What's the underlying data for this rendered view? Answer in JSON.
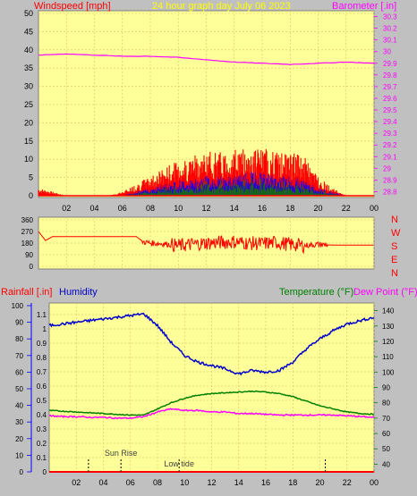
{
  "title": "24 hour graph day   July 06 2023",
  "colors": {
    "background": "#c0c0c0",
    "plot": "#ffff99",
    "grid": "#d8c060",
    "windspeed": "#ff0000",
    "wind_gust_low": "#0000ff",
    "wind_green": "#008000",
    "barometer": "#ff00ff",
    "direction": "#ff0000",
    "rainfall": "#ff0000",
    "humidity": "#0000cc",
    "temperature": "#008000",
    "dewpoint": "#ff00ff",
    "title": "#ffff00"
  },
  "chart_data": [
    {
      "type": "line",
      "name": "wind_barometer",
      "left_axis_label": "Windspeed [mph]",
      "right_axis_label": "Barometer [.in]",
      "x_ticks": [
        "02",
        "04",
        "06",
        "08",
        "10",
        "12",
        "14",
        "16",
        "18",
        "20",
        "22",
        "00"
      ],
      "y_ticks": [
        "0",
        "5",
        "10",
        "15",
        "20",
        "25",
        "30",
        "35",
        "40",
        "45",
        "50"
      ],
      "y2_ticks": [
        "28.8",
        "28.9",
        "29",
        "29.1",
        "29.2",
        "29.3",
        "29.4",
        "29.5",
        "29.6",
        "29.7",
        "29.8",
        "29.9",
        "30",
        "30.1",
        "30.2",
        "30.3"
      ],
      "ylim": [
        0,
        50
      ],
      "y2lim": [
        28.75,
        30.35
      ],
      "barometer": {
        "x": [
          0,
          2,
          4,
          6,
          8,
          10,
          12,
          14,
          16,
          18,
          20,
          22,
          24
        ],
        "y": [
          29.97,
          29.98,
          29.97,
          29.96,
          29.96,
          29.95,
          29.93,
          29.91,
          29.9,
          29.89,
          29.9,
          29.91,
          29.9
        ]
      },
      "windspeed_envelope": {
        "x": [
          0,
          1,
          2,
          3,
          4,
          5,
          6,
          7,
          8,
          9,
          10,
          11,
          12,
          13,
          14,
          15,
          16,
          17,
          18,
          19,
          20,
          21,
          22,
          23,
          24
        ],
        "gust": [
          2,
          1,
          0,
          0,
          0,
          0,
          1,
          3,
          5,
          7,
          9,
          10,
          11,
          11,
          12,
          12,
          12,
          11,
          11,
          10,
          5,
          2,
          0,
          0,
          0
        ],
        "avg": [
          0,
          0,
          0,
          0,
          0,
          0,
          0,
          1,
          2,
          3,
          4,
          4,
          5,
          5,
          5,
          6,
          6,
          5,
          5,
          4,
          2,
          1,
          0,
          0,
          0
        ]
      }
    },
    {
      "type": "line",
      "name": "wind_direction",
      "y_ticks": [
        "360",
        "270",
        "180",
        "90",
        "0"
      ],
      "right_labels": [
        "N",
        "W",
        "S",
        "E",
        "N"
      ],
      "ylim": [
        0,
        360
      ],
      "x": [
        0,
        0.5,
        1,
        2,
        4,
        6,
        7,
        7.5,
        8,
        9,
        10,
        11,
        12,
        13,
        14,
        15,
        16,
        17,
        18,
        19,
        20,
        21,
        22,
        24
      ],
      "y": [
        270,
        200,
        230,
        230,
        230,
        230,
        230,
        190,
        180,
        175,
        160,
        170,
        180,
        185,
        190,
        180,
        175,
        185,
        170,
        160,
        170,
        165,
        165,
        165
      ]
    },
    {
      "type": "line",
      "name": "rain_humidity_temperature",
      "left_axis_label_1": "Rainfall [.in]",
      "left_axis_label_2": "Humidity",
      "right_axis_label_1": "Temperature (°F)",
      "right_axis_label_2": "Dew Point (°F)",
      "x_ticks": [
        "02",
        "04",
        "06",
        "08",
        "10",
        "12",
        "14",
        "16",
        "18",
        "20",
        "22",
        "00"
      ],
      "rain_ticks": [
        "0",
        "0.1",
        "0.2",
        "0.3",
        "0.4",
        "0.5",
        "0.6",
        "0.7",
        "0.8",
        "0.9",
        "1",
        "1.1"
      ],
      "humidity_ticks": [
        "0",
        "10",
        "20",
        "30",
        "40",
        "50",
        "60",
        "70",
        "80",
        "90",
        "100"
      ],
      "temp_ticks": [
        "40",
        "50",
        "60",
        "70",
        "80",
        "90",
        "100",
        "110",
        "120",
        "130",
        "140"
      ],
      "humidity": {
        "x": [
          0,
          1,
          2,
          3,
          4,
          5,
          6,
          7,
          8,
          9,
          10,
          11,
          12,
          13,
          14,
          15,
          16,
          17,
          18,
          19,
          20,
          21,
          22,
          23,
          24
        ],
        "y": [
          88,
          89,
          90,
          91,
          92,
          93,
          94,
          95,
          88,
          78,
          70,
          66,
          64,
          62,
          59,
          61,
          60,
          61,
          66,
          74,
          80,
          85,
          89,
          91,
          93
        ]
      },
      "temperature": {
        "x": [
          0,
          1,
          2,
          3,
          4,
          5,
          6,
          7,
          8,
          9,
          10,
          11,
          12,
          13,
          14,
          15,
          16,
          17,
          18,
          19,
          20,
          21,
          22,
          23,
          24
        ],
        "y": [
          75,
          74.5,
          74,
          73.5,
          73,
          72.5,
          72,
          72,
          76,
          80,
          83,
          85,
          86,
          86.5,
          87,
          87.5,
          87,
          86,
          84,
          81,
          78,
          76,
          74,
          73,
          72.5
        ]
      },
      "dewpoint": {
        "x": [
          0,
          1,
          2,
          3,
          4,
          5,
          6,
          7,
          8,
          9,
          10,
          11,
          12,
          13,
          14,
          15,
          16,
          17,
          18,
          19,
          20,
          21,
          22,
          23,
          24
        ],
        "y": [
          71.5,
          71,
          71,
          70.5,
          70.5,
          70,
          70,
          71,
          74,
          76,
          75,
          75,
          74,
          74,
          73,
          73,
          72.5,
          72,
          72,
          72,
          72,
          72,
          71.5,
          71,
          70.5
        ]
      },
      "annotations": [
        {
          "text": "Sun Rise",
          "x": 5.3
        },
        {
          "text": "Low tide",
          "x": 9.6
        }
      ],
      "tide_markers_x": [
        2.9,
        5.3,
        9.6,
        20.4
      ]
    }
  ]
}
